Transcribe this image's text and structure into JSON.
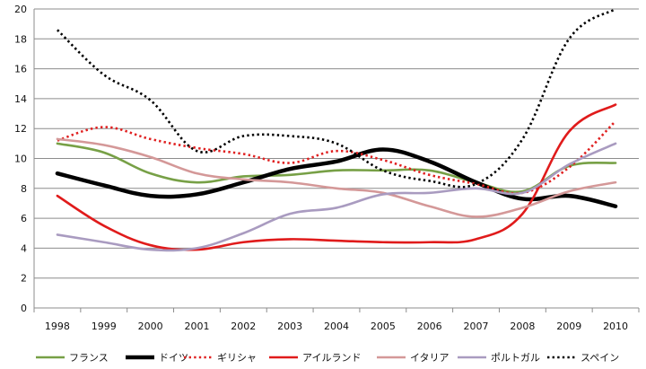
{
  "chart_data": {
    "type": "line",
    "categories": [
      "1998",
      "1999",
      "2000",
      "2001",
      "2002",
      "2003",
      "2004",
      "2005",
      "2006",
      "2007",
      "2008",
      "2009",
      "2010"
    ],
    "ylim": [
      0,
      20
    ],
    "yticks": [
      0,
      2,
      4,
      6,
      8,
      10,
      12,
      14,
      16,
      18,
      20
    ],
    "grid": "horizontal",
    "legend_position": "bottom",
    "series": [
      {
        "name": "フランス",
        "color": "#77A046",
        "dash": "solid",
        "width": "medium",
        "values": [
          11.0,
          10.4,
          9.0,
          8.4,
          8.8,
          8.9,
          9.2,
          9.2,
          9.2,
          8.4,
          7.8,
          9.5,
          9.7
        ]
      },
      {
        "name": "ドイツ",
        "color": "#000000",
        "dash": "solid",
        "width": "thick",
        "values": [
          9.0,
          8.2,
          7.5,
          7.6,
          8.4,
          9.3,
          9.8,
          10.6,
          9.8,
          8.4,
          7.3,
          7.5,
          6.8
        ]
      },
      {
        "name": "ギリシャ",
        "color": "#E02020",
        "dash": "dotted",
        "width": "medium",
        "values": [
          11.2,
          12.1,
          11.3,
          10.7,
          10.3,
          9.7,
          10.5,
          9.9,
          8.9,
          8.3,
          7.7,
          9.4,
          12.5
        ]
      },
      {
        "name": "アイルランド",
        "color": "#E01B1B",
        "dash": "solid",
        "width": "medium",
        "values": [
          7.5,
          5.5,
          4.2,
          3.9,
          4.4,
          4.6,
          4.5,
          4.4,
          4.4,
          4.6,
          6.3,
          11.8,
          13.6
        ]
      },
      {
        "name": "イタリア",
        "color": "#D49898",
        "dash": "solid",
        "width": "medium",
        "values": [
          11.3,
          10.9,
          10.1,
          9.0,
          8.6,
          8.4,
          8.0,
          7.7,
          6.8,
          6.1,
          6.7,
          7.8,
          8.4
        ]
      },
      {
        "name": "ポルトガル",
        "color": "#A99BC0",
        "dash": "solid",
        "width": "medium",
        "values": [
          4.9,
          4.4,
          3.9,
          4.0,
          5.0,
          6.3,
          6.7,
          7.6,
          7.7,
          8.0,
          7.7,
          9.6,
          11.0
        ]
      },
      {
        "name": "スペイン",
        "color": "#000000",
        "dash": "dotted",
        "width": "medium",
        "values": [
          18.6,
          15.6,
          13.9,
          10.5,
          11.5,
          11.5,
          11.0,
          9.2,
          8.5,
          8.3,
          11.3,
          18.0,
          20.1
        ]
      }
    ]
  }
}
